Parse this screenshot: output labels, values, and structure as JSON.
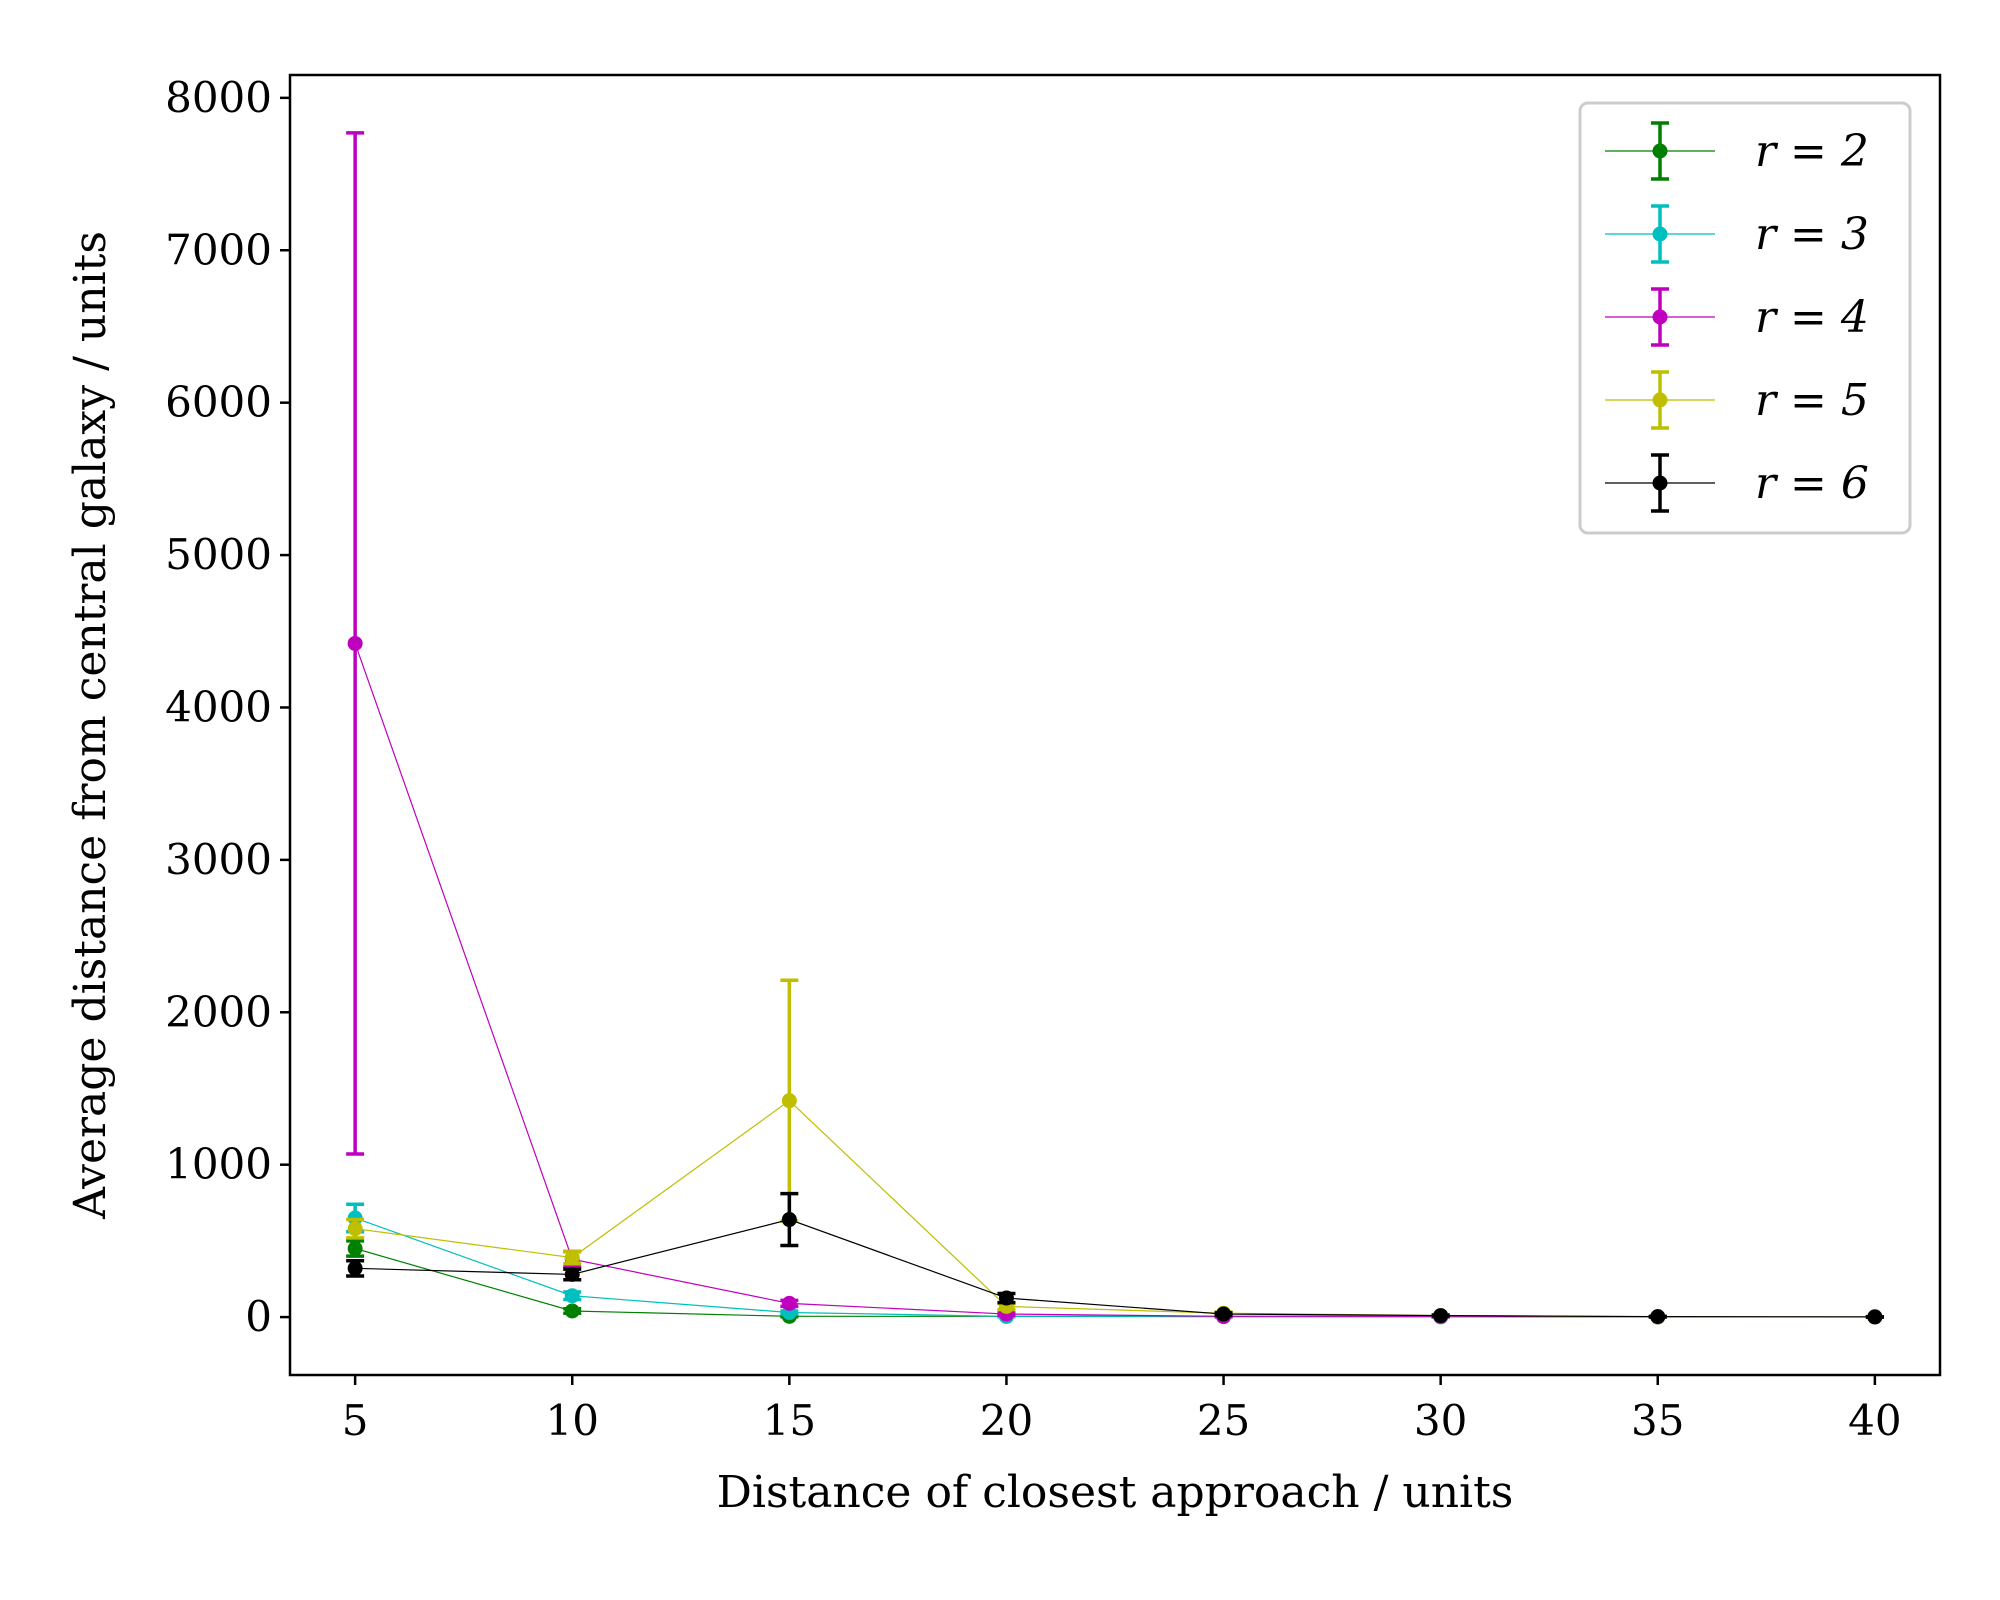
{
  "chart_data": {
    "type": "line",
    "xlabel": "Distance of closest approach / units",
    "ylabel": "Average distance from central galaxy / units",
    "xlim": [
      3.5,
      41.5
    ],
    "ylim": [
      -380,
      8150
    ],
    "xticks": [
      5,
      10,
      15,
      20,
      25,
      30,
      35,
      40
    ],
    "yticks": [
      0,
      1000,
      2000,
      3000,
      4000,
      5000,
      6000,
      7000,
      8000
    ],
    "grid": false,
    "legend_position": "top-right",
    "series": [
      {
        "name": "r = 2",
        "color": "#008000",
        "points": [
          {
            "x": 5,
            "y": 450,
            "err": 50
          },
          {
            "x": 10,
            "y": 40,
            "err": 15
          },
          {
            "x": 15,
            "y": 5,
            "err": 3
          },
          {
            "x": 20,
            "y": 5,
            "err": 2
          },
          {
            "x": 25,
            "y": 3,
            "err": 2
          },
          {
            "x": 30,
            "y": 2,
            "err": 1
          },
          {
            "x": 35,
            "y": 1,
            "err": 1
          },
          {
            "x": 40,
            "y": 1,
            "err": 1
          }
        ]
      },
      {
        "name": "r = 3",
        "color": "#00bfbf",
        "points": [
          {
            "x": 5,
            "y": 650,
            "err": 90
          },
          {
            "x": 10,
            "y": 140,
            "err": 25
          },
          {
            "x": 15,
            "y": 30,
            "err": 10
          },
          {
            "x": 20,
            "y": 5,
            "err": 3
          },
          {
            "x": 25,
            "y": 5,
            "err": 2
          },
          {
            "x": 30,
            "y": 3,
            "err": 2
          },
          {
            "x": 35,
            "y": 1,
            "err": 1
          },
          {
            "x": 40,
            "y": 1,
            "err": 1
          }
        ]
      },
      {
        "name": "r = 4",
        "color": "#bf00bf",
        "points": [
          {
            "x": 5,
            "y": 4420,
            "err": 3350
          },
          {
            "x": 10,
            "y": 380,
            "err": 50
          },
          {
            "x": 15,
            "y": 90,
            "err": 20
          },
          {
            "x": 20,
            "y": 20,
            "err": 8
          },
          {
            "x": 25,
            "y": 5,
            "err": 3
          },
          {
            "x": 30,
            "y": 5,
            "err": 2
          },
          {
            "x": 35,
            "y": 2,
            "err": 1
          },
          {
            "x": 40,
            "y": 1,
            "err": 1
          }
        ]
      },
      {
        "name": "r = 5",
        "color": "#bfbf00",
        "points": [
          {
            "x": 5,
            "y": 580,
            "err": 60
          },
          {
            "x": 10,
            "y": 390,
            "err": 40
          },
          {
            "x": 15,
            "y": 1420,
            "err": 790
          },
          {
            "x": 20,
            "y": 70,
            "err": 20
          },
          {
            "x": 25,
            "y": 25,
            "err": 8
          },
          {
            "x": 30,
            "y": 10,
            "err": 4
          },
          {
            "x": 35,
            "y": 2,
            "err": 1
          },
          {
            "x": 40,
            "y": 1,
            "err": 1
          }
        ]
      },
      {
        "name": "r = 6",
        "color": "#000000",
        "points": [
          {
            "x": 5,
            "y": 320,
            "err": 50
          },
          {
            "x": 10,
            "y": 280,
            "err": 35
          },
          {
            "x": 15,
            "y": 640,
            "err": 170
          },
          {
            "x": 20,
            "y": 125,
            "err": 30
          },
          {
            "x": 25,
            "y": 20,
            "err": 8
          },
          {
            "x": 30,
            "y": 10,
            "err": 4
          },
          {
            "x": 35,
            "y": 3,
            "err": 2
          },
          {
            "x": 40,
            "y": 1,
            "err": 1
          }
        ]
      }
    ]
  }
}
